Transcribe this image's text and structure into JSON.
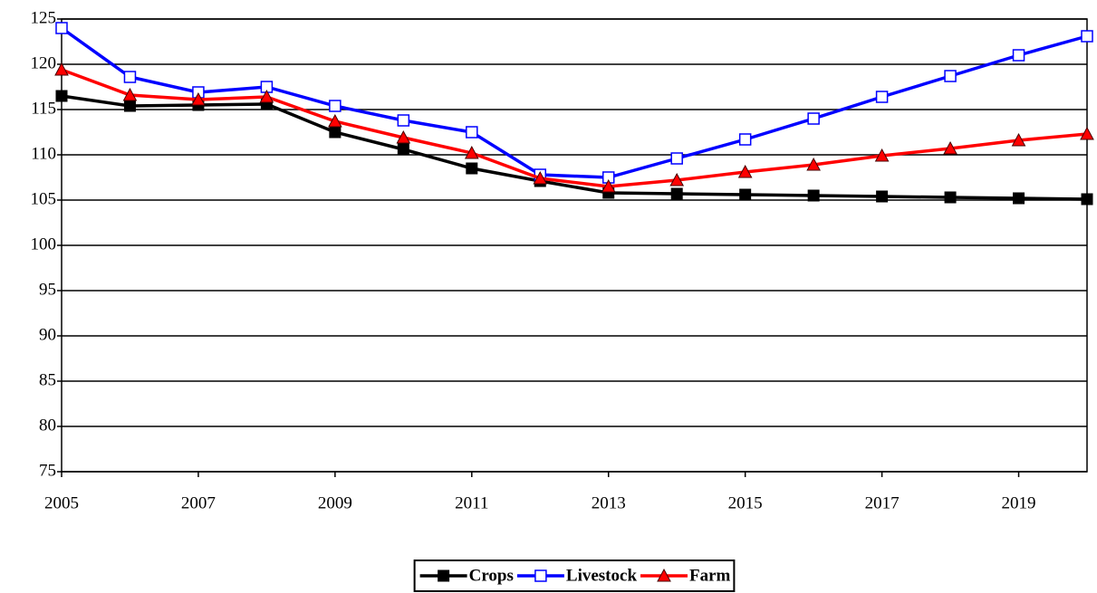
{
  "chart_data": {
    "type": "line",
    "x": [
      2005,
      2006,
      2007,
      2008,
      2009,
      2010,
      2011,
      2012,
      2013,
      2014,
      2015,
      2016,
      2017,
      2018,
      2019,
      2020
    ],
    "series": [
      {
        "name": "Crops",
        "color": "#000000",
        "marker": "square",
        "values": [
          116.5,
          115.4,
          115.5,
          115.6,
          112.5,
          110.6,
          108.5,
          107.1,
          105.8,
          105.7,
          105.6,
          105.5,
          105.4,
          105.3,
          105.2,
          105.1
        ]
      },
      {
        "name": "Livestock",
        "color": "#0000ff",
        "marker": "square-open",
        "values": [
          124,
          118.6,
          116.9,
          117.5,
          115.4,
          113.8,
          112.5,
          107.8,
          107.5,
          109.6,
          111.7,
          114,
          116.4,
          118.7,
          121,
          123.1
        ]
      },
      {
        "name": "Farm",
        "color": "#ff0000",
        "marker": "triangle",
        "values": [
          119.4,
          116.6,
          116.1,
          116.4,
          113.7,
          111.9,
          110.2,
          107.4,
          106.5,
          107.2,
          108.1,
          108.9,
          109.9,
          110.7,
          111.6,
          112.3
        ]
      }
    ],
    "xlim": [
      2005,
      2020
    ],
    "xticks": [
      2005,
      2007,
      2009,
      2011,
      2013,
      2015,
      2017,
      2019
    ],
    "ylim": [
      75,
      125
    ],
    "yticks": [
      75,
      80,
      85,
      90,
      95,
      100,
      105,
      110,
      115,
      120,
      125
    ],
    "grid": true,
    "legend": "bottom"
  }
}
